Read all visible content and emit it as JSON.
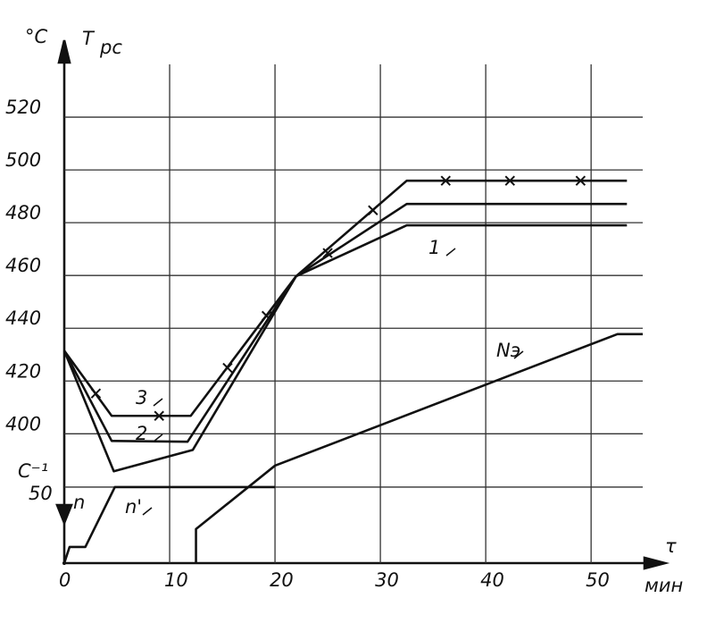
{
  "chart_data": {
    "type": "line",
    "y_label": "°C",
    "title": "T",
    "title_sub": "рс",
    "y2_label": "C⁻¹",
    "y2_axis_label": "n",
    "x_label": "τ",
    "x_unit": "мин",
    "xlim": [
      0,
      54.9
    ],
    "xticks": [
      0,
      10,
      20,
      30,
      40,
      50
    ],
    "ylim": [
      351,
      540
    ],
    "yticks": [
      400,
      420,
      440,
      460,
      480,
      500,
      520
    ],
    "y2lim": [
      0,
      328
    ],
    "y2ticks": [
      50
    ],
    "grid": true,
    "color": "#111111",
    "series": [
      {
        "name": "1",
        "x": [
          0,
          4.7,
          12.2,
          22,
          32.5,
          53.4
        ],
        "values": [
          431.5,
          385.8,
          393.9,
          459.7,
          479,
          479
        ]
      },
      {
        "name": "2",
        "x": [
          0,
          4.5,
          11.7,
          22,
          32.5,
          53.4
        ],
        "values": [
          431.5,
          397.3,
          397,
          459.7,
          487.1,
          487.1
        ]
      },
      {
        "name": "3",
        "x": [
          0,
          4.5,
          12,
          22,
          32.5,
          53.4
        ],
        "values": [
          431.5,
          406.8,
          406.8,
          459.7,
          495.9,
          495.9
        ]
      },
      {
        "marker": "x",
        "x": [
          3,
          9,
          15.5,
          19.2,
          25,
          29.3,
          36.2,
          42.3,
          49
        ],
        "values": [
          415.3,
          406.8,
          425,
          444.7,
          468.5,
          484.7,
          495.9,
          495.9,
          495.9
        ]
      },
      {
        "name": "n'",
        "axis": "y2",
        "x": [
          0,
          0.5,
          2,
          4.8,
          20
        ],
        "values": [
          0,
          10.6,
          10.6,
          50,
          50
        ]
      },
      {
        "name": "Nэ",
        "axis": "y2",
        "x": [
          12.5,
          12.5,
          20,
          52.5,
          54.9
        ],
        "values": [
          0,
          22.4,
          64.1,
          150.6,
          150.6
        ]
      }
    ]
  }
}
